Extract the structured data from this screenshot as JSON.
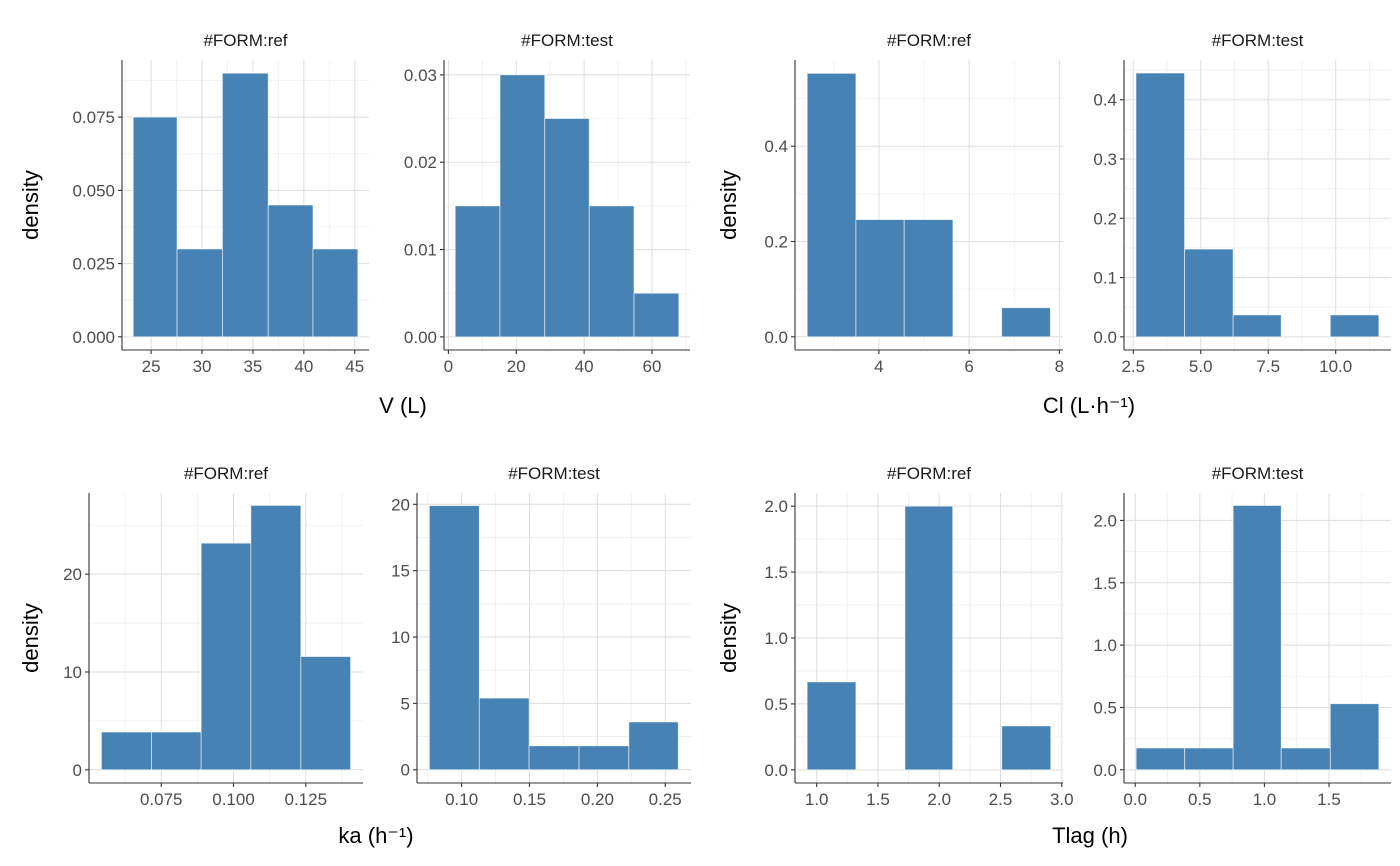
{
  "chart_data": [
    {
      "type": "bar",
      "histogram": true,
      "strip": "#FORM:ref",
      "xlabel": "V (L)",
      "ylabel": "density",
      "bin_edges": [
        23.24,
        27.55,
        32.0,
        36.5,
        40.9,
        45.3
      ],
      "values": [
        0.075,
        0.03,
        0.09,
        0.045,
        0.03
      ],
      "xlim": [
        22.14,
        46.4
      ],
      "ylim": [
        -0.0045,
        0.0945
      ],
      "xticks": [
        25,
        30,
        35,
        40,
        45
      ],
      "xtick_labels": [
        "25",
        "30",
        "35",
        "40",
        "45"
      ],
      "yticks": [
        0,
        0.025,
        0.05,
        0.075
      ],
      "ytick_labels": [
        "0.000",
        "0.025",
        "0.050",
        "0.075"
      ]
    },
    {
      "type": "bar",
      "histogram": true,
      "strip": "#FORM:test",
      "xlabel": "V (L)",
      "ylabel": "density",
      "bin_edges": [
        2.0,
        15.2,
        28.4,
        41.5,
        54.7,
        67.9
      ],
      "values": [
        0.015,
        0.03,
        0.025,
        0.015,
        0.005
      ],
      "xlim": [
        -1.3,
        71.2
      ],
      "ylim": [
        -0.0015,
        0.0317
      ],
      "xticks": [
        0,
        20,
        40,
        60
      ],
      "xtick_labels": [
        "0",
        "20",
        "40",
        "60"
      ],
      "yticks": [
        0,
        0.01,
        0.02,
        0.03
      ],
      "ytick_labels": [
        "0.00",
        "0.01",
        "0.02",
        "0.03"
      ]
    },
    {
      "type": "bar",
      "histogram": true,
      "strip": "#FORM:ref",
      "xlabel": "Cl (L·h⁻¹)",
      "ylabel": "density",
      "bin_edges": [
        2.41,
        3.49,
        4.56,
        5.64,
        6.72,
        7.8
      ],
      "values": [
        0.553,
        0.246,
        0.246,
        0,
        0.061
      ],
      "xlim": [
        2.14,
        8.08
      ],
      "ylim": [
        -0.0277,
        0.581
      ],
      "xticks": [
        4,
        6,
        8
      ],
      "xtick_labels": [
        "4",
        "6",
        "8"
      ],
      "yticks": [
        0,
        0.2,
        0.4
      ],
      "ytick_labels": [
        "0.0",
        "0.2",
        "0.4"
      ]
    },
    {
      "type": "bar",
      "histogram": true,
      "strip": "#FORM:test",
      "xlabel": "Cl (L·h⁻¹)",
      "ylabel": "density",
      "bin_edges": [
        2.6,
        4.4,
        6.2,
        7.98,
        9.8,
        11.6
      ],
      "values": [
        0.445,
        0.148,
        0.037,
        0,
        0.037
      ],
      "xlim": [
        2.156,
        12.05
      ],
      "ylim": [
        -0.0222,
        0.467
      ],
      "xticks": [
        2.5,
        5,
        7.5,
        10
      ],
      "xtick_labels": [
        "2.5",
        "5.0",
        "7.5",
        "10.0"
      ],
      "yticks": [
        0,
        0.1,
        0.2,
        0.3,
        0.4
      ],
      "ytick_labels": [
        "0.0",
        "0.1",
        "0.2",
        "0.3",
        "0.4"
      ]
    },
    {
      "type": "bar",
      "histogram": true,
      "strip": "#FORM:ref",
      "xlabel": "ka (h⁻¹)",
      "ylabel": "density",
      "bin_edges": [
        0.0543,
        0.0716,
        0.0888,
        0.106,
        0.1233,
        0.1405
      ],
      "values": [
        3.86,
        3.86,
        23.17,
        27.03,
        11.58
      ],
      "xlim": [
        0.05,
        0.1448
      ],
      "ylim": [
        -1.35,
        28.3
      ],
      "xticks": [
        0.075,
        0.1,
        0.125
      ],
      "xtick_labels": [
        "0.075",
        "0.100",
        "0.125"
      ],
      "yticks": [
        0,
        10,
        20
      ],
      "ytick_labels": [
        "0",
        "10",
        "20"
      ]
    },
    {
      "type": "bar",
      "histogram": true,
      "strip": "#FORM:test",
      "xlabel": "ka (h⁻¹)",
      "ylabel": "density",
      "bin_edges": [
        0.0762,
        0.113,
        0.1497,
        0.1865,
        0.2232,
        0.2596
      ],
      "values": [
        19.9,
        5.4,
        1.8,
        1.8,
        3.6
      ],
      "xlim": [
        0.0671,
        0.269
      ],
      "ylim": [
        -1.0,
        20.85
      ],
      "xticks": [
        0.1,
        0.15,
        0.2,
        0.25
      ],
      "xtick_labels": [
        "0.10",
        "0.15",
        "0.20",
        "0.25"
      ],
      "yticks": [
        0,
        5,
        10,
        15,
        20
      ],
      "ytick_labels": [
        "0",
        "5",
        "10",
        "15",
        "20"
      ]
    },
    {
      "type": "bar",
      "histogram": true,
      "strip": "#FORM:ref",
      "xlabel": "Tlag (h)",
      "ylabel": "density",
      "bin_edges": [
        0.922,
        1.32,
        1.72,
        2.11,
        2.51,
        2.91
      ],
      "values": [
        0.667,
        0,
        2.0,
        0,
        0.333
      ],
      "xlim": [
        0.823,
        3.01
      ],
      "ylim": [
        -0.1,
        2.1
      ],
      "xticks": [
        1,
        1.5,
        2,
        2.5,
        3
      ],
      "xtick_labels": [
        "1.0",
        "1.5",
        "2.0",
        "2.5",
        "3.0"
      ],
      "yticks": [
        0,
        0.5,
        1,
        1.5,
        2
      ],
      "ytick_labels": [
        "0.0",
        "0.5",
        "1.0",
        "1.5",
        "2.0"
      ]
    },
    {
      "type": "bar",
      "histogram": true,
      "strip": "#FORM:test",
      "xlabel": "Tlag (h)",
      "ylabel": "density",
      "bin_edges": [
        0.007,
        0.383,
        0.758,
        1.13,
        1.51,
        1.886
      ],
      "values": [
        0.175,
        0.175,
        2.12,
        0.175,
        0.53
      ],
      "xlim": [
        -0.087,
        1.98
      ],
      "ylim": [
        -0.106,
        2.22
      ],
      "xticks": [
        0,
        0.5,
        1,
        1.5
      ],
      "xtick_labels": [
        "0.0",
        "0.5",
        "1.0",
        "1.5"
      ],
      "yticks": [
        0,
        0.5,
        1,
        1.5,
        2
      ],
      "ytick_labels": [
        "0.0",
        "0.5",
        "1.0",
        "1.5",
        "2.0"
      ]
    }
  ],
  "axis_titles": {
    "y": "density",
    "x_v": "V (L)",
    "x_cl": "Cl (L·h⁻¹)",
    "x_ka": "ka (h⁻¹)",
    "x_tlag": "Tlag (h)"
  },
  "colors": {
    "bar_fill": "#4682B4",
    "bar_outline": "#ffffff",
    "grid_major": "#dedede",
    "grid_minor": "#efefef",
    "axis": "#333333"
  },
  "grid": true
}
